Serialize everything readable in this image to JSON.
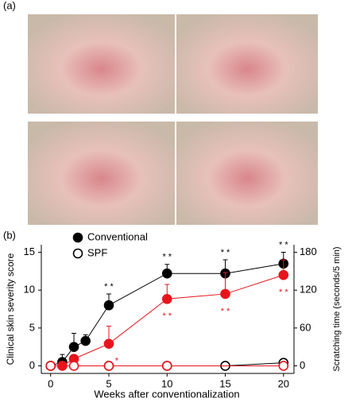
{
  "panel_labels": [
    "(a)",
    "(b)"
  ],
  "chart_data": {
    "type": "line",
    "xlabel": "Weeks after conventionalization",
    "ylabel": "Clinical skin severity score",
    "y2label": "Scratching time (seconds/5 min)",
    "xlim": [
      -0.8,
      20.9
    ],
    "xticks": [
      0,
      5,
      10,
      15,
      20
    ],
    "ylim": [
      -1,
      16
    ],
    "yticks": [
      0,
      5,
      10,
      15
    ],
    "y2lim": [
      -12,
      192
    ],
    "y2ticks": [
      0,
      60,
      120,
      180
    ],
    "legend": "upper left",
    "series": [
      {
        "name": "Conventional",
        "color": "#000000",
        "filled": true,
        "axis": "y",
        "x": [
          0,
          1,
          2,
          3,
          5,
          10,
          15,
          20
        ],
        "values": [
          0,
          0.5,
          2.5,
          3.3,
          8,
          12.2,
          12.2,
          13.5
        ],
        "errors": [
          0.1,
          1,
          1.8,
          0.8,
          1.5,
          1.2,
          1.8,
          1.5
        ],
        "annotations": [
          null,
          null,
          null,
          null,
          "* *",
          "* *",
          "* *",
          "* *"
        ]
      },
      {
        "name": "SPF",
        "color": "#000000",
        "filled": false,
        "axis": "y",
        "x": [
          0,
          5,
          10,
          15,
          20
        ],
        "values": [
          0,
          0,
          0,
          0,
          0.4
        ]
      },
      {
        "color": "#e8141c",
        "filled": true,
        "axis": "y2",
        "x": [
          1,
          2,
          5,
          10,
          15,
          20
        ],
        "values": [
          0,
          11,
          35,
          106,
          114,
          144
        ],
        "errors": [
          0,
          5,
          28,
          23,
          34,
          24
        ],
        "annotations": [
          null,
          null,
          "*",
          "* *",
          "* *",
          "* *"
        ]
      },
      {
        "color": "#e8141c",
        "filled": false,
        "axis": "y2",
        "x": [
          0,
          2,
          5,
          10,
          20
        ],
        "values": [
          0,
          0,
          0,
          0,
          0
        ]
      }
    ]
  }
}
